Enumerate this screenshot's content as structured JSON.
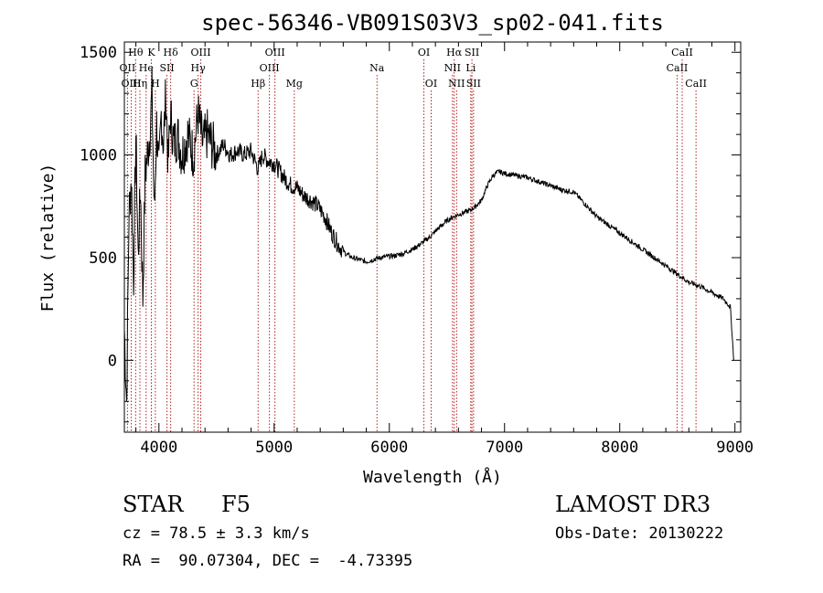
{
  "chart_data": {
    "type": "line",
    "title": "spec-56346-VB091S03V3_sp02-041.fits",
    "xlabel": "Wavelength (Å)",
    "ylabel": "Flux (relative)",
    "xlim": [
      3700,
      9050
    ],
    "ylim": [
      -350,
      1550
    ],
    "xticks": [
      4000,
      5000,
      6000,
      7000,
      8000,
      9000
    ],
    "yticks": [
      0,
      500,
      1000,
      1500
    ],
    "series": [
      {
        "name": "flux",
        "x": [
          3700,
          3720,
          3740,
          3760,
          3780,
          3800,
          3820,
          3840,
          3860,
          3880,
          3900,
          3920,
          3940,
          3960,
          3980,
          4000,
          4020,
          4040,
          4060,
          4080,
          4100,
          4130,
          4160,
          4200,
          4250,
          4300,
          4340,
          4380,
          4420,
          4460,
          4500,
          4560,
          4620,
          4680,
          4740,
          4800,
          4861,
          4900,
          4950,
          5000,
          5050,
          5100,
          5150,
          5200,
          5260,
          5320,
          5380,
          5440,
          5500,
          5560,
          5620,
          5680,
          5740,
          5800,
          5860,
          5920,
          5980,
          6050,
          6120,
          6200,
          6280,
          6350,
          6420,
          6500,
          6560,
          6600,
          6650,
          6700,
          6750,
          6800,
          6850,
          6900,
          6950,
          7000,
          7100,
          7200,
          7300,
          7400,
          7500,
          7600,
          7700,
          7800,
          7900,
          8000,
          8100,
          8200,
          8300,
          8400,
          8500,
          8600,
          8700,
          8800,
          8900,
          8960,
          8990
        ],
        "y": [
          150,
          -200,
          700,
          900,
          400,
          1100,
          500,
          850,
          300,
          900,
          1000,
          1100,
          1300,
          700,
          1150,
          900,
          1200,
          1050,
          1300,
          950,
          1200,
          1050,
          1100,
          1000,
          1100,
          1000,
          1200,
          1050,
          1100,
          1050,
          1000,
          1050,
          1000,
          1020,
          1000,
          1020,
          930,
          1000,
          970,
          960,
          920,
          880,
          850,
          840,
          800,
          780,
          750,
          700,
          620,
          560,
          520,
          500,
          490,
          480,
          490,
          500,
          505,
          510,
          520,
          540,
          570,
          600,
          640,
          680,
          700,
          710,
          720,
          730,
          750,
          780,
          850,
          900,
          920,
          910,
          900,
          890,
          870,
          850,
          830,
          820,
          760,
          700,
          660,
          620,
          580,
          540,
          500,
          460,
          420,
          380,
          360,
          330,
          300,
          260,
          0
        ]
      }
    ],
    "lines": [
      {
        "label": "Hθ",
        "x": 3798,
        "row": 1
      },
      {
        "label": "OII",
        "x": 3727,
        "row": 2
      },
      {
        "label": "OIII",
        "x": 3760,
        "row": 3
      },
      {
        "label": "He",
        "x": 3889,
        "row": 2
      },
      {
        "label": "Hη",
        "x": 3835,
        "row": 3
      },
      {
        "label": "K",
        "x": 3934,
        "row": 1
      },
      {
        "label": "SII",
        "x": 4070,
        "row": 2
      },
      {
        "label": "H",
        "x": 3969,
        "row": 3
      },
      {
        "label": "Hδ",
        "x": 4102,
        "row": 1
      },
      {
        "label": "OIII",
        "x": 4363,
        "row": 1
      },
      {
        "label": "Hγ",
        "x": 4340,
        "row": 2
      },
      {
        "label": "G",
        "x": 4305,
        "row": 3
      },
      {
        "label": "OIII",
        "x": 5007,
        "row": 1
      },
      {
        "label": "OIII",
        "x": 4959,
        "row": 2
      },
      {
        "label": "Hβ",
        "x": 4861,
        "row": 3
      },
      {
        "label": "Mg",
        "x": 5175,
        "row": 3
      },
      {
        "label": "Na",
        "x": 5893,
        "row": 2
      },
      {
        "label": "OI",
        "x": 6300,
        "row": 1
      },
      {
        "label": "OI",
        "x": 6363,
        "row": 3
      },
      {
        "label": "Hα",
        "x": 6563,
        "row": 1
      },
      {
        "label": "NII",
        "x": 6548,
        "row": 2
      },
      {
        "label": "NII",
        "x": 6584,
        "row": 3
      },
      {
        "label": "SII",
        "x": 6717,
        "row": 1
      },
      {
        "label": "Li",
        "x": 6707,
        "row": 2
      },
      {
        "label": "SII",
        "x": 6731,
        "row": 3
      },
      {
        "label": "CaII",
        "x": 8542,
        "row": 1
      },
      {
        "label": "CaII",
        "x": 8498,
        "row": 2
      },
      {
        "label": "CaII",
        "x": 8662,
        "row": 3
      }
    ]
  },
  "info": {
    "object_type": "STAR",
    "subclass": "F5",
    "survey": "LAMOST DR3",
    "cz": "cz = 78.5 ± 3.3 km/s",
    "obs_date": "Obs-Date: 20130222",
    "coords": "RA =  90.07304, DEC =  -4.73395"
  }
}
